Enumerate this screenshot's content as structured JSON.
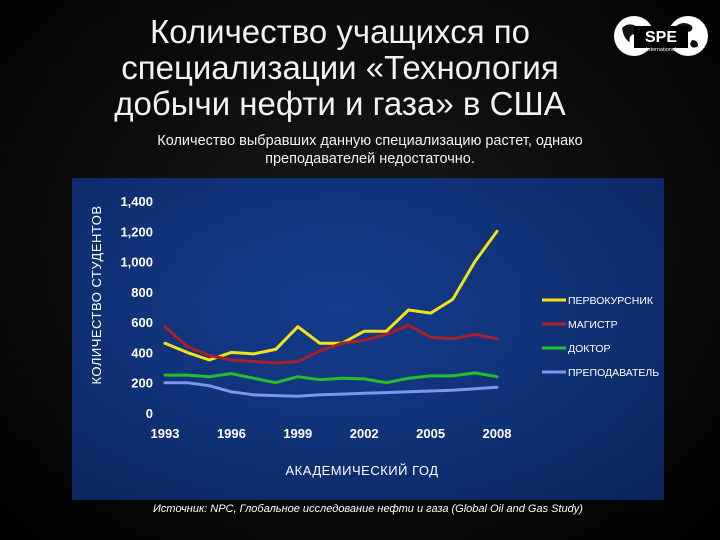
{
  "slide": {
    "title": "Количество учащихся по специализации «Технология добычи нефти и газа» в США",
    "subtitle": "Количество выбравших данную специализацию растет, однако преподавателей недостаточно.",
    "source": "Источник: NPC, Глобальное исследование нефти и газа (Global Oil and Gas Study)"
  },
  "logo": {
    "text": "SPE",
    "subtext": "International"
  },
  "chart_data": {
    "type": "line",
    "xlabel": "АКАДЕМИЧЕСКИЙ ГОД",
    "ylabel": "КОЛИЧЕСТВО СТУДЕНТОВ",
    "x": [
      1993,
      1994,
      1995,
      1996,
      1997,
      1998,
      1999,
      2000,
      2001,
      2002,
      2003,
      2004,
      2005,
      2006,
      2007,
      2008
    ],
    "xticks": [
      1993,
      1996,
      1999,
      2002,
      2005,
      2008
    ],
    "xtick_labels": [
      "1993",
      "1996",
      "1999",
      "2002",
      "2005",
      "2008"
    ],
    "xlim": [
      1993,
      2008
    ],
    "ylim": [
      0,
      1400
    ],
    "yticks": [
      0,
      200,
      400,
      600,
      800,
      1000,
      1200,
      1400
    ],
    "ytick_labels": [
      "0",
      "200",
      "400",
      "600",
      "800",
      "1,000",
      "1,200",
      "1,400"
    ],
    "grid": false,
    "legend_position": "right",
    "series": [
      {
        "name": "ПЕРВОКУРСНИК",
        "color": "#f2e21a",
        "values": [
          460,
          400,
          350,
          400,
          390,
          420,
          570,
          460,
          460,
          540,
          540,
          680,
          660,
          750,
          1000,
          1200
        ]
      },
      {
        "name": "МАГИСТР",
        "color": "#a8202a",
        "values": [
          570,
          440,
          380,
          350,
          340,
          330,
          340,
          410,
          460,
          480,
          520,
          580,
          500,
          490,
          520,
          490
        ]
      },
      {
        "name": "ДОКТОР",
        "color": "#22c02c",
        "values": [
          250,
          250,
          240,
          260,
          230,
          200,
          240,
          220,
          230,
          225,
          200,
          230,
          245,
          245,
          265,
          240
        ]
      },
      {
        "name": "ПРЕПОДАВАТЕЛЬ",
        "color": "#7f95f0",
        "values": [
          200,
          200,
          180,
          140,
          120,
          115,
          110,
          120,
          125,
          130,
          135,
          140,
          145,
          150,
          160,
          170
        ]
      }
    ]
  }
}
